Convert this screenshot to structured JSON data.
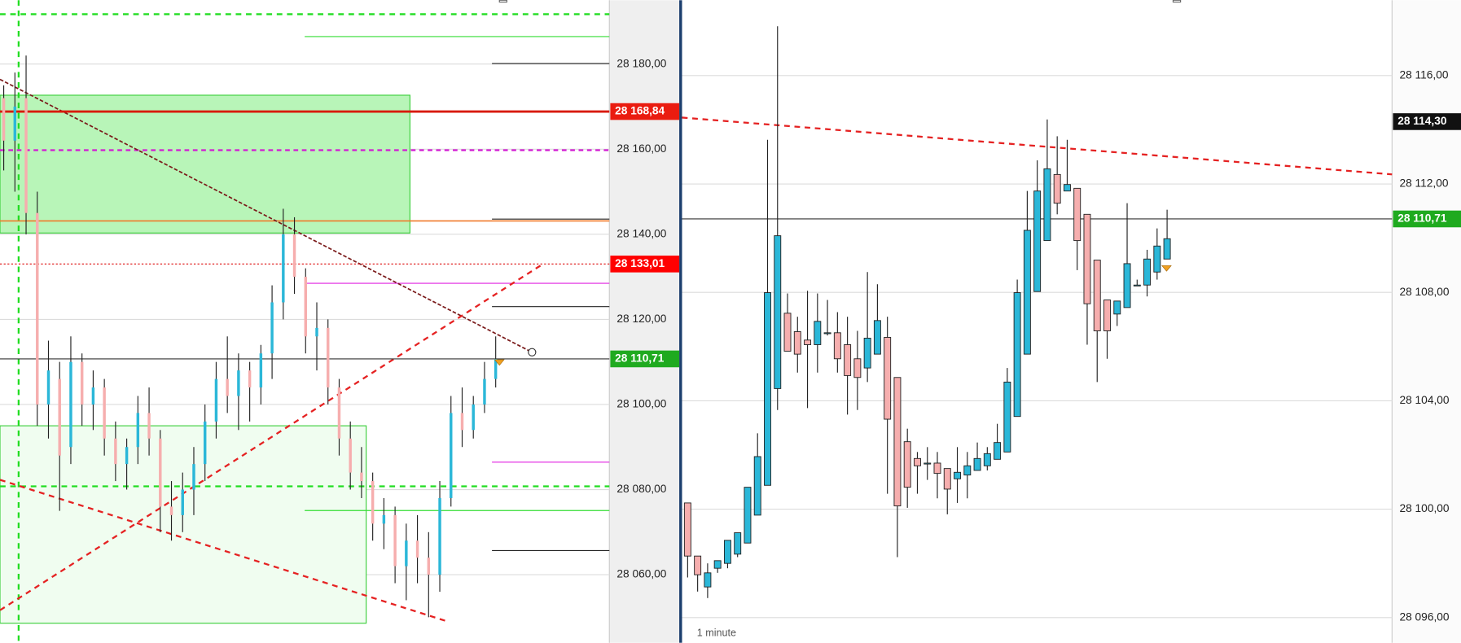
{
  "chart_data": [
    {
      "type": "candlestick",
      "ylim": [
        28044,
        28195
      ],
      "yticks": [
        {
          "value": 28060,
          "label": "28 060,00"
        },
        {
          "value": 28080,
          "label": "28 080,00"
        },
        {
          "value": 28100,
          "label": "28 100,00"
        },
        {
          "value": 28120,
          "label": "28 120,00"
        },
        {
          "value": 28140,
          "label": "28 140,00"
        },
        {
          "value": 28160,
          "label": "28 160,00"
        },
        {
          "value": 28180,
          "label": "28 180,00"
        }
      ],
      "grid": true,
      "up_color": "#2bb7d8",
      "down_color": "#f6aeae",
      "open": [
        28172,
        28162,
        28172,
        28145,
        28100,
        28106,
        28090,
        28110,
        28100,
        28104,
        28092,
        28086,
        28090,
        28098,
        28092,
        28076,
        28074,
        28080,
        28086,
        28096,
        28106,
        28102,
        28108,
        28104,
        28112,
        28124,
        28140,
        28130,
        28116,
        28118,
        28104,
        28092,
        28084,
        28082,
        28072,
        28074,
        28062,
        28068,
        28064,
        28060,
        28078,
        28098,
        28094,
        28100,
        28106
      ],
      "high": [
        28175,
        28178,
        28182,
        28150,
        28115,
        28110,
        28116,
        28112,
        28108,
        28106,
        28096,
        28092,
        28102,
        28104,
        28094,
        28082,
        28084,
        28090,
        28100,
        28110,
        28116,
        28112,
        28110,
        28114,
        28128,
        28146,
        28144,
        28132,
        28124,
        28120,
        28106,
        28096,
        28090,
        28084,
        28078,
        28076,
        28072,
        28074,
        28070,
        28082,
        28102,
        28104,
        28102,
        28110,
        28116
      ],
      "low": [
        28155,
        28150,
        28140,
        28095,
        28092,
        28075,
        28086,
        28095,
        28094,
        28088,
        28082,
        28080,
        28086,
        28088,
        28070,
        28068,
        28070,
        28074,
        28082,
        28092,
        28098,
        28094,
        28096,
        28100,
        28106,
        28120,
        28126,
        28112,
        28108,
        28100,
        28088,
        28080,
        28078,
        28068,
        28066,
        28058,
        28054,
        28058,
        28050,
        28056,
        28076,
        28090,
        28092,
        28098,
        28104
      ],
      "close": [
        28162,
        28170,
        28145,
        28100,
        28108,
        28088,
        28110,
        28100,
        28104,
        28092,
        28086,
        28090,
        28098,
        28092,
        28076,
        28074,
        28080,
        28086,
        28096,
        28106,
        28102,
        28108,
        28104,
        28112,
        28124,
        28140,
        28130,
        28116,
        28118,
        28104,
        28092,
        28084,
        28082,
        28072,
        28074,
        28062,
        28068,
        28064,
        28060,
        28078,
        28098,
        28094,
        28100,
        28106,
        28110.71
      ],
      "price_labels": [
        {
          "value": 28168.84,
          "label": "28 168,84",
          "color": "#ea1c10",
          "line": "solid",
          "line_color": "#d81a0c"
        },
        {
          "value": 28133.01,
          "label": "28 133,01",
          "color": "#ff0000",
          "line": "dotted",
          "line_color": "#e02020"
        },
        {
          "value": 28110.71,
          "label": "28 110,71",
          "color": "#1faa1f",
          "line": "solid",
          "line_color": "#333333"
        }
      ]
    },
    {
      "type": "candlestick",
      "ylim": [
        28095.07,
        28118.78
      ],
      "yticks": [
        {
          "value": 28096,
          "label": "28 096,00"
        },
        {
          "value": 28100,
          "label": "28 100,00"
        },
        {
          "value": 28104,
          "label": "28 104,00"
        },
        {
          "value": 28108,
          "label": "28 108,00"
        },
        {
          "value": 28112,
          "label": "28 112,00"
        },
        {
          "value": 28116,
          "label": "28 116,00"
        }
      ],
      "grid": true,
      "up_color": "#2bb7d8",
      "down_color": "#f6aeae",
      "timeframe": "1 minute",
      "open": [
        28100.23,
        28098.27,
        28097.13,
        28097.82,
        28098.0,
        28098.34,
        28098.75,
        28099.78,
        28100.88,
        28104.45,
        28107.23,
        28106.55,
        28106.24,
        28106.07,
        28106.51,
        28106.51,
        28106.07,
        28105.55,
        28105.21,
        28105.72,
        28106.34,
        28104.86,
        28102.49,
        28101.87,
        28101.7,
        28101.7,
        28101.5,
        28101.12,
        28101.26,
        28101.43,
        28101.6,
        28101.84,
        28102.11,
        28103.42,
        28105.72,
        28108.03,
        28109.91,
        28112.35,
        28111.74,
        28111.84,
        28110.88,
        28109.19,
        28107.72,
        28107.2,
        28107.44,
        28108.27,
        28108.27,
        28108.75,
        28109.23
      ],
      "high": [
        28100.23,
        28098.27,
        28098.0,
        28098.1,
        28098.85,
        28099.13,
        28100.81,
        28102.8,
        28113.63,
        28117.82,
        28107.96,
        28107.1,
        28108.06,
        28107.96,
        28107.72,
        28107.27,
        28107.1,
        28106.58,
        28108.75,
        28108.3,
        28107.1,
        28104.86,
        28102.97,
        28102.11,
        28102.29,
        28102.11,
        28101.5,
        28102.29,
        28102.11,
        28102.46,
        28102.29,
        28103.15,
        28105.21,
        28108.47,
        28111.74,
        28112.87,
        28114.38,
        28113.76,
        28113.63,
        28111.84,
        28110.88,
        28109.19,
        28107.72,
        28107.68,
        28111.29,
        28108.47,
        28109.57,
        28110.36,
        28111.05
      ],
      "low": [
        28097.48,
        28096.96,
        28096.72,
        28097.65,
        28097.82,
        28098.23,
        28098.75,
        28099.78,
        28100.88,
        28103.66,
        28105.83,
        28105.04,
        28103.73,
        28105.04,
        28106.41,
        28105.04,
        28103.49,
        28103.66,
        28104.69,
        28105.72,
        28100.57,
        28098.23,
        28100.05,
        28100.57,
        28101.08,
        28100.4,
        28099.81,
        28100.23,
        28100.4,
        28101.43,
        28101.43,
        28101.84,
        28102.11,
        28103.42,
        28105.72,
        28108.03,
        28109.91,
        28110.88,
        28111.74,
        28108.82,
        28106.07,
        28104.69,
        28105.55,
        28106.76,
        28107.44,
        28108.27,
        28107.85,
        28108.47,
        28109.23
      ],
      "close": [
        28098.27,
        28097.58,
        28097.65,
        28098.1,
        28098.85,
        28099.13,
        28100.81,
        28101.94,
        28107.99,
        28110.09,
        28105.83,
        28105.72,
        28106.07,
        28106.93,
        28106.51,
        28105.55,
        28104.93,
        28104.86,
        28106.31,
        28106.96,
        28103.32,
        28100.12,
        28100.81,
        28101.6,
        28101.7,
        28101.32,
        28100.74,
        28101.36,
        28101.6,
        28101.87,
        28102.05,
        28102.46,
        28104.69,
        28107.99,
        28110.29,
        28111.74,
        28112.56,
        28111.29,
        28111.98,
        28109.91,
        28107.58,
        28106.58,
        28106.58,
        28107.68,
        28109.06,
        28108.27,
        28109.23,
        28109.71,
        28109.98
      ],
      "price_labels": [
        {
          "value": 28114.3,
          "label": "28 114,30",
          "color": "#111111",
          "line": "none",
          "line_color": "#111111"
        },
        {
          "value": 28110.71,
          "label": "28 110,71",
          "color": "#1faa1f",
          "line": "solid",
          "line_color": "#333333"
        }
      ]
    }
  ]
}
